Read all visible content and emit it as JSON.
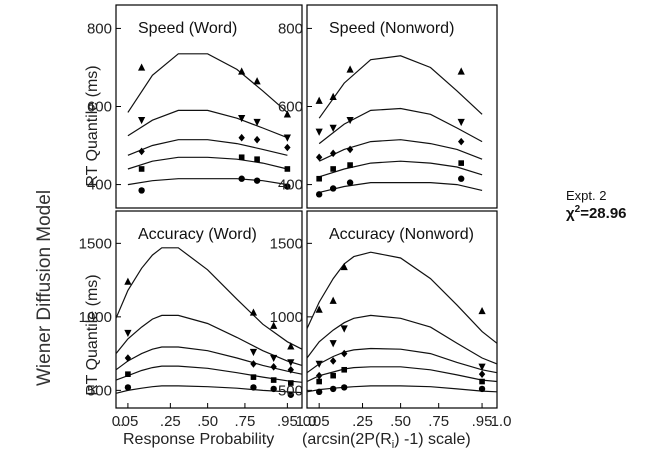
{
  "figure": {
    "side_title": "Wiener Diffusion Model",
    "expt_label": "Expt. 2",
    "chi_label": "χ",
    "chi_sup": "2",
    "chi_value": "=28.96",
    "xlabel_left": "Response Probability",
    "xlabel_right": "(arcsin(2P(R",
    "xlabel_right_sub": "i",
    "xlabel_right_end": ") -1) scale)"
  },
  "chart_data": [
    {
      "type": "line",
      "title": "Speed (Word)",
      "ylabel": "RT Quantile (ms)",
      "ylim": [
        340,
        860
      ],
      "yticks": [
        400,
        600,
        800
      ],
      "xticks": [
        ".05",
        ".25",
        ".50",
        ".75",
        ".95"
      ],
      "xtick_values": [
        0.05,
        0.25,
        0.5,
        0.75,
        0.95
      ],
      "xlim": [
        0.02,
        0.985
      ],
      "x_scale": "arcsin(2p-1)",
      "series": [
        {
          "x": [
            0.05,
            0.15,
            0.3,
            0.5,
            0.7,
            0.85,
            0.95
          ],
          "values": [
            585,
            680,
            735,
            735,
            695,
            640,
            585
          ],
          "points": {
            "x": [
              0.1,
              0.73,
              0.82,
              0.95
            ],
            "y": [
              700,
              690,
              665,
              580
            ],
            "marker": "triangle-up"
          }
        },
        {
          "x": [
            0.05,
            0.15,
            0.3,
            0.5,
            0.7,
            0.85,
            0.95
          ],
          "values": [
            525,
            565,
            590,
            590,
            570,
            545,
            520
          ],
          "points": {
            "x": [
              0.1,
              0.73,
              0.82,
              0.95
            ],
            "y": [
              565,
              570,
              560,
              520
            ],
            "marker": "triangle-down"
          }
        },
        {
          "x": [
            0.05,
            0.15,
            0.3,
            0.5,
            0.7,
            0.85,
            0.95
          ],
          "values": [
            475,
            500,
            515,
            515,
            505,
            490,
            475
          ],
          "points": {
            "x": [
              0.1,
              0.73,
              0.82,
              0.95
            ],
            "y": [
              485,
              520,
              515,
              495
            ],
            "marker": "diamond"
          }
        },
        {
          "x": [
            0.05,
            0.15,
            0.3,
            0.5,
            0.7,
            0.85,
            0.95
          ],
          "values": [
            440,
            460,
            470,
            470,
            465,
            455,
            440
          ],
          "points": {
            "x": [
              0.1,
              0.73,
              0.82,
              0.95
            ],
            "y": [
              440,
              470,
              465,
              440
            ],
            "marker": "square"
          }
        },
        {
          "x": [
            0.05,
            0.15,
            0.3,
            0.5,
            0.7,
            0.85,
            0.95
          ],
          "values": [
            400,
            410,
            415,
            415,
            415,
            410,
            400
          ],
          "points": {
            "x": [
              0.1,
              0.73,
              0.82,
              0.95
            ],
            "y": [
              385,
              415,
              410,
              395
            ],
            "marker": "circle"
          }
        }
      ]
    },
    {
      "type": "line",
      "title": "Speed (Nonword)",
      "ylabel": "",
      "ylim": [
        340,
        860
      ],
      "yticks": [
        400,
        600,
        800
      ],
      "xticks": [
        ".05",
        ".25",
        ".50",
        ".75",
        ".95"
      ],
      "xtick_values": [
        0.05,
        0.25,
        0.5,
        0.75,
        0.95
      ],
      "xlim": [
        0.02,
        0.985
      ],
      "x_scale": "arcsin(2p-1)",
      "series": [
        {
          "x": [
            0.05,
            0.15,
            0.3,
            0.5,
            0.7,
            0.85,
            0.95
          ],
          "values": [
            570,
            660,
            720,
            730,
            700,
            640,
            580
          ],
          "points": {
            "x": [
              0.05,
              0.1,
              0.18,
              0.87
            ],
            "y": [
              615,
              625,
              695,
              690
            ],
            "marker": "triangle-up"
          }
        },
        {
          "x": [
            0.05,
            0.15,
            0.3,
            0.5,
            0.7,
            0.85,
            0.95
          ],
          "values": [
            505,
            555,
            590,
            595,
            580,
            545,
            510
          ],
          "points": {
            "x": [
              0.05,
              0.1,
              0.18,
              0.87
            ],
            "y": [
              535,
              545,
              565,
              560
            ],
            "marker": "triangle-down"
          }
        },
        {
          "x": [
            0.05,
            0.15,
            0.3,
            0.5,
            0.7,
            0.85,
            0.95
          ],
          "values": [
            460,
            490,
            510,
            515,
            505,
            490,
            465
          ],
          "points": {
            "x": [
              0.05,
              0.1,
              0.18,
              0.87
            ],
            "y": [
              470,
              480,
              490,
              510
            ],
            "marker": "diamond"
          }
        },
        {
          "x": [
            0.05,
            0.15,
            0.3,
            0.5,
            0.7,
            0.85,
            0.95
          ],
          "values": [
            420,
            440,
            455,
            460,
            455,
            445,
            425
          ],
          "points": {
            "x": [
              0.05,
              0.1,
              0.18,
              0.87
            ],
            "y": [
              415,
              440,
              450,
              455
            ],
            "marker": "square"
          }
        },
        {
          "x": [
            0.05,
            0.15,
            0.3,
            0.5,
            0.7,
            0.85,
            0.95
          ],
          "values": [
            380,
            395,
            405,
            405,
            405,
            400,
            385
          ],
          "points": {
            "x": [
              0.05,
              0.1,
              0.18,
              0.87
            ],
            "y": [
              375,
              390,
              405,
              415
            ],
            "marker": "circle"
          }
        }
      ]
    },
    {
      "type": "line",
      "title": "Accuracy (Word)",
      "ylabel": "RT Quantile (ms)",
      "ylim": [
        380,
        1720
      ],
      "yticks": [
        500,
        1000,
        1500
      ],
      "xticks": [
        ".05",
        ".25",
        ".50",
        ".75",
        ".95"
      ],
      "xtick_values": [
        0.05,
        0.25,
        0.5,
        0.75,
        0.95
      ],
      "xlim": [
        0.02,
        0.985
      ],
      "x_scale": "arcsin(2p-1)",
      "series": [
        {
          "x": [
            0.02,
            0.05,
            0.1,
            0.15,
            0.2,
            0.3,
            0.5,
            0.7,
            0.85,
            0.95,
            0.985
          ],
          "values": [
            990,
            1180,
            1330,
            1420,
            1470,
            1470,
            1320,
            1120,
            950,
            830,
            780
          ],
          "points": {
            "x": [
              0.05,
              0.8,
              0.9,
              0.96
            ],
            "y": [
              1240,
              1030,
              940,
              800
            ],
            "marker": "triangle-up"
          }
        },
        {
          "x": [
            0.02,
            0.05,
            0.1,
            0.15,
            0.2,
            0.3,
            0.5,
            0.7,
            0.85,
            0.95,
            0.985
          ],
          "values": [
            750,
            850,
            930,
            985,
            1010,
            1010,
            955,
            860,
            770,
            700,
            670
          ],
          "points": {
            "x": [
              0.05,
              0.8,
              0.9,
              0.96
            ],
            "y": [
              890,
              760,
              720,
              690
            ],
            "marker": "triangle-down"
          }
        },
        {
          "x": [
            0.02,
            0.05,
            0.1,
            0.15,
            0.2,
            0.3,
            0.5,
            0.7,
            0.85,
            0.95,
            0.985
          ],
          "values": [
            640,
            700,
            750,
            780,
            795,
            795,
            770,
            720,
            670,
            630,
            610
          ],
          "points": {
            "x": [
              0.05,
              0.8,
              0.9,
              0.96
            ],
            "y": [
              720,
              680,
              660,
              640
            ],
            "marker": "diamond"
          }
        },
        {
          "x": [
            0.02,
            0.05,
            0.1,
            0.15,
            0.2,
            0.3,
            0.5,
            0.7,
            0.85,
            0.95,
            0.985
          ],
          "values": [
            570,
            600,
            635,
            655,
            665,
            665,
            650,
            620,
            590,
            565,
            555
          ],
          "points": {
            "x": [
              0.05,
              0.8,
              0.9,
              0.96
            ],
            "y": [
              610,
              590,
              570,
              550
            ],
            "marker": "square"
          }
        },
        {
          "x": [
            0.02,
            0.05,
            0.1,
            0.15,
            0.2,
            0.3,
            0.5,
            0.7,
            0.85,
            0.95,
            0.985
          ],
          "values": [
            480,
            500,
            515,
            525,
            530,
            530,
            525,
            515,
            500,
            490,
            485
          ],
          "points": {
            "x": [
              0.05,
              0.8,
              0.9,
              0.96
            ],
            "y": [
              520,
              520,
              510,
              470
            ],
            "marker": "circle"
          }
        }
      ]
    },
    {
      "type": "line",
      "title": "Accuracy (Nonword)",
      "ylabel": "",
      "ylim": [
        380,
        1720
      ],
      "yticks": [
        500,
        1000,
        1500
      ],
      "xticks": [
        ".05",
        ".25",
        ".50",
        ".75",
        ".95"
      ],
      "xtick_values": [
        0.05,
        0.25,
        0.5,
        0.75,
        0.95
      ],
      "xlim": [
        0.02,
        0.985
      ],
      "x_scale": "arcsin(2p-1)",
      "series": [
        {
          "x": [
            0.02,
            0.05,
            0.1,
            0.15,
            0.2,
            0.3,
            0.5,
            0.7,
            0.85,
            0.95,
            0.985
          ],
          "values": [
            920,
            1100,
            1260,
            1360,
            1410,
            1440,
            1400,
            1260,
            1080,
            900,
            820
          ],
          "points": {
            "x": [
              0.05,
              0.1,
              0.15,
              0.95
            ],
            "y": [
              1050,
              1110,
              1340,
              1040
            ],
            "marker": "triangle-up"
          }
        },
        {
          "x": [
            0.02,
            0.05,
            0.1,
            0.15,
            0.2,
            0.3,
            0.5,
            0.7,
            0.85,
            0.95,
            0.985
          ],
          "values": [
            720,
            830,
            910,
            960,
            990,
            1010,
            990,
            930,
            820,
            720,
            680
          ],
          "points": {
            "x": [
              0.05,
              0.1,
              0.15,
              0.95
            ],
            "y": [
              680,
              820,
              920,
              660
            ],
            "marker": "triangle-down"
          }
        },
        {
          "x": [
            0.02,
            0.05,
            0.1,
            0.15,
            0.2,
            0.3,
            0.5,
            0.7,
            0.85,
            0.95,
            0.985
          ],
          "values": [
            620,
            680,
            730,
            760,
            775,
            785,
            780,
            750,
            690,
            640,
            620
          ],
          "points": {
            "x": [
              0.05,
              0.1,
              0.15,
              0.95
            ],
            "y": [
              600,
              700,
              750,
              610
            ],
            "marker": "diamond"
          }
        },
        {
          "x": [
            0.02,
            0.05,
            0.1,
            0.15,
            0.2,
            0.3,
            0.5,
            0.7,
            0.85,
            0.95,
            0.985
          ],
          "values": [
            560,
            600,
            625,
            645,
            655,
            660,
            660,
            640,
            605,
            570,
            560
          ],
          "points": {
            "x": [
              0.05,
              0.1,
              0.15,
              0.95
            ],
            "y": [
              560,
              600,
              640,
              560
            ],
            "marker": "square"
          }
        },
        {
          "x": [
            0.02,
            0.05,
            0.1,
            0.15,
            0.2,
            0.3,
            0.5,
            0.7,
            0.85,
            0.95,
            0.985
          ],
          "values": [
            490,
            505,
            515,
            520,
            525,
            530,
            530,
            525,
            510,
            495,
            490
          ],
          "points": {
            "x": [
              0.05,
              0.1,
              0.15,
              0.95
            ],
            "y": [
              490,
              510,
              520,
              510
            ],
            "marker": "circle"
          }
        }
      ]
    }
  ]
}
